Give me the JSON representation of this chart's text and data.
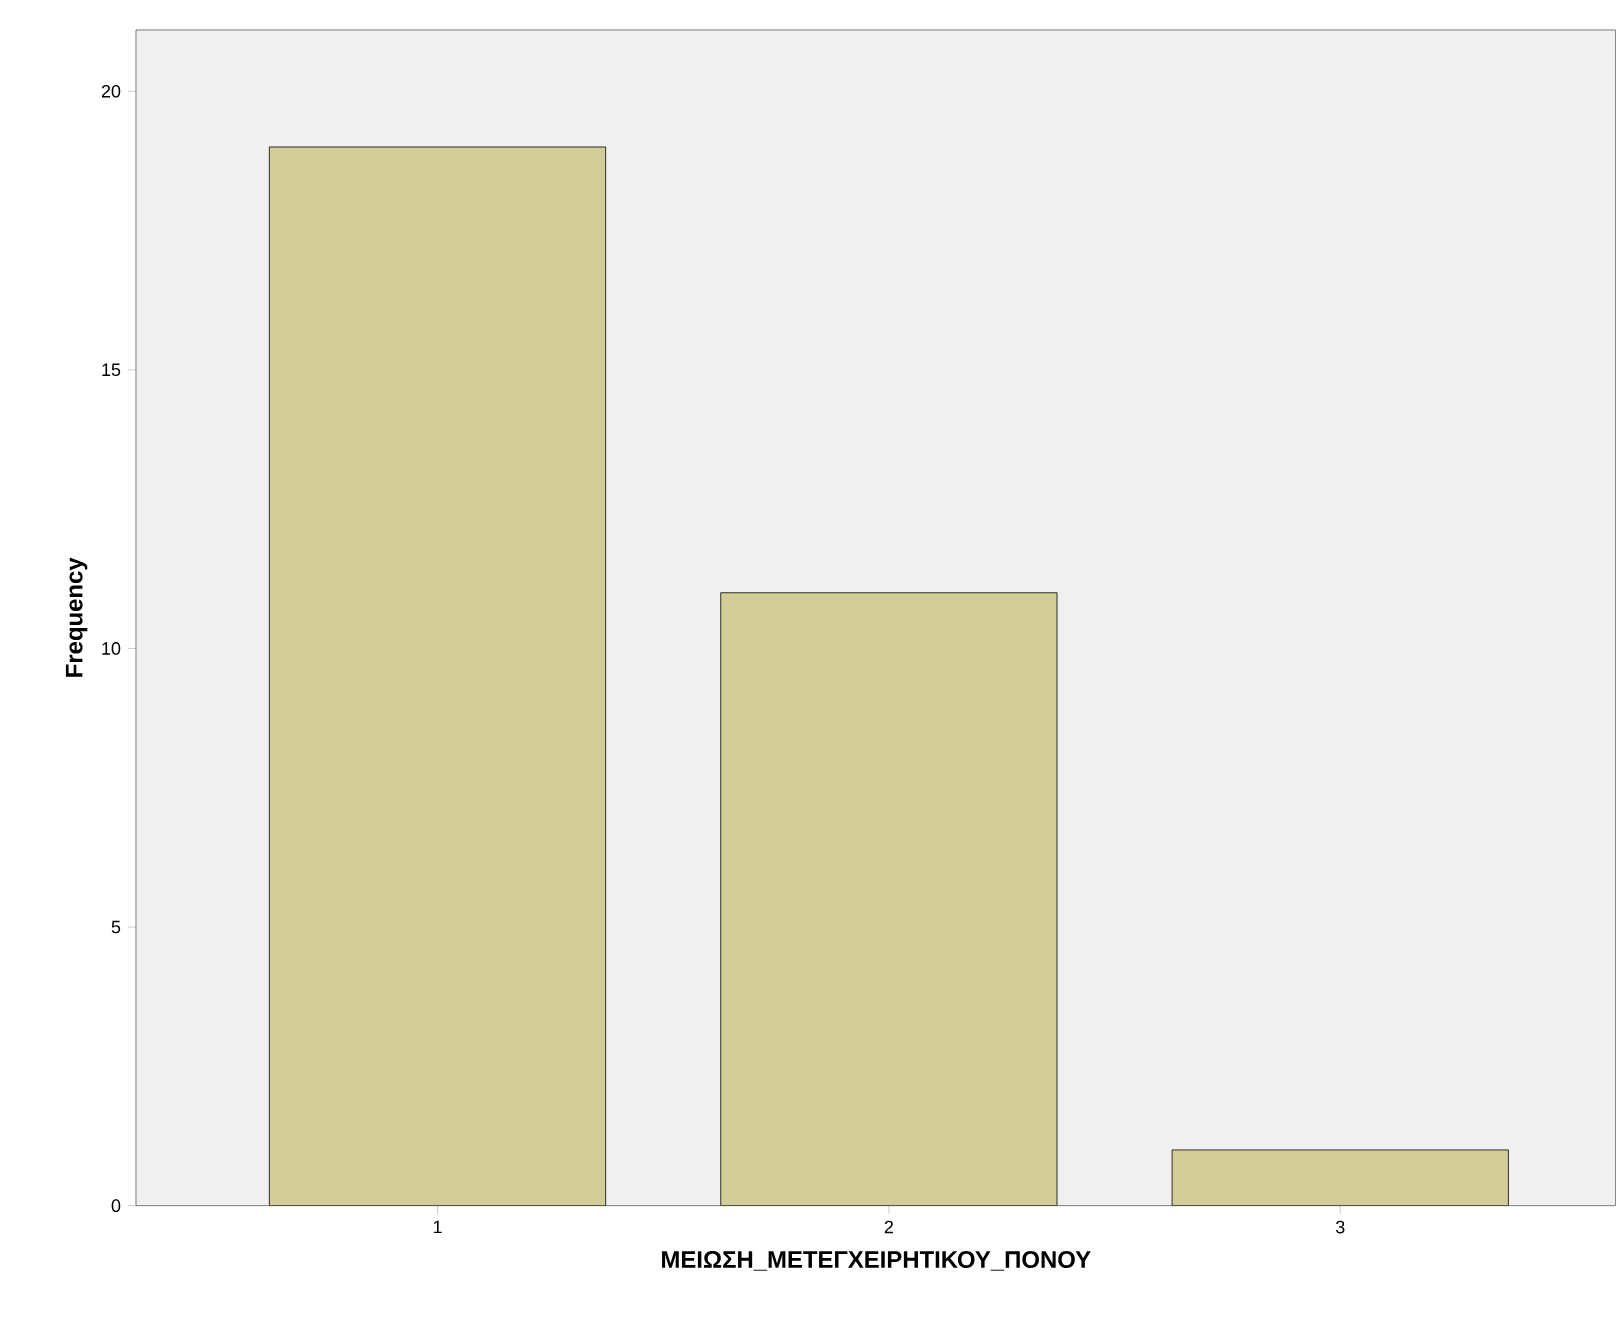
{
  "chart_data": {
    "type": "bar",
    "xlabel": "ΜΕΙΩΣΗ_ΜΕΤΕΓΧΕΙΡΗΤΙΚΟΥ_ΠΟΝΟΥ",
    "ylabel": "Frequency",
    "categories": [
      "1",
      "2",
      "3"
    ],
    "values": [
      19,
      11,
      1
    ],
    "color": "#d3ce97",
    "ylim": [
      0,
      21.1
    ],
    "yticks": [
      0,
      5,
      10,
      15,
      20
    ],
    "grid": false
  }
}
